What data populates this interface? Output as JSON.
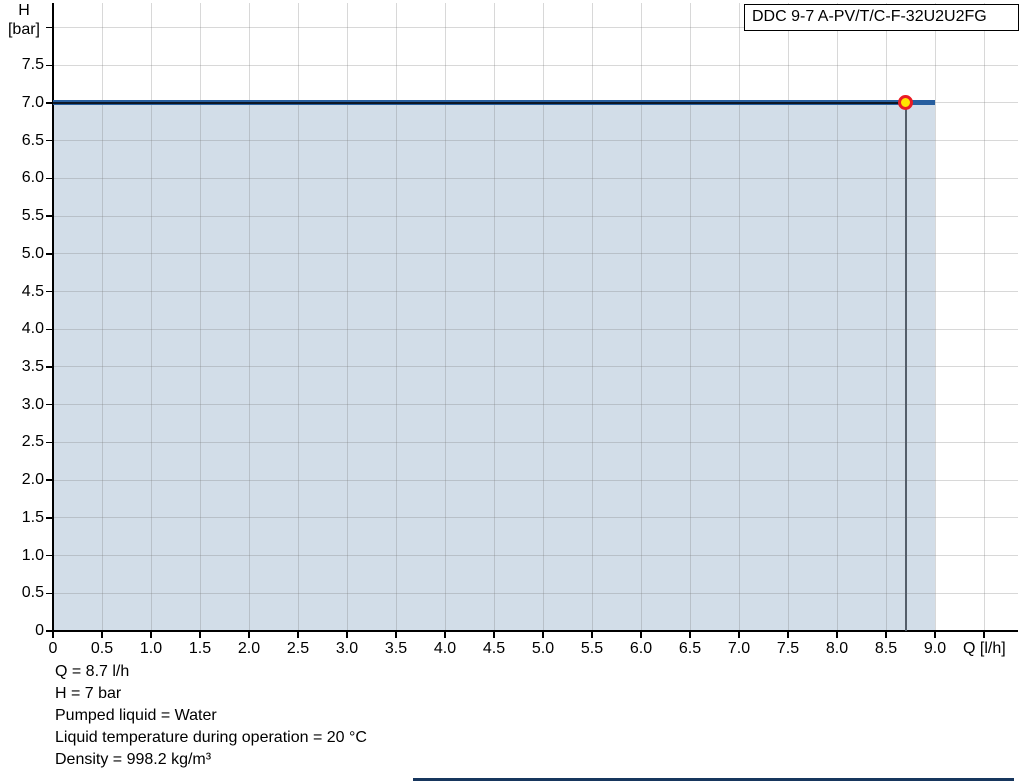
{
  "title_box": {
    "label": "DDC 9-7 A-PV/T/C-F-32U2U2FG"
  },
  "info_lines": [
    "Q = 8.7 l/h",
    "H = 7 bar",
    "Pumped liquid = Water",
    "Liquid temperature during operation = 20 °C",
    "Density = 998.2 kg/m³"
  ],
  "chart_data": {
    "type": "area",
    "title": "DDC 9-7 A-PV/T/C-F-32U2U2FG",
    "xlabel": "Q [l/h]",
    "ylabel": "H [bar]",
    "ylabel_lines": [
      "H",
      "[bar]"
    ],
    "xlim": [
      0,
      9.85
    ],
    "ylim": [
      0,
      8.3
    ],
    "tick_step": 0.5,
    "x_tick_labels": [
      "0",
      "0.5",
      "1.0",
      "1.5",
      "2.0",
      "2.5",
      "3.0",
      "3.5",
      "4.0",
      "4.5",
      "5.0",
      "5.5",
      "6.0",
      "6.5",
      "7.0",
      "7.5",
      "8.0",
      "8.5",
      "9.0"
    ],
    "y_tick_labels": [
      "0",
      "0.5",
      "1.0",
      "1.5",
      "2.0",
      "2.5",
      "3.0",
      "3.5",
      "4.0",
      "4.5",
      "5.0",
      "5.5",
      "6.0",
      "6.5",
      "7.0",
      "7.5"
    ],
    "grid": true,
    "legend": "none",
    "series": [
      {
        "name": "pump-curve",
        "x": [
          0,
          9.0
        ],
        "y": [
          7.0,
          7.0
        ],
        "color": "#275e9f",
        "width": 5
      },
      {
        "name": "duty-highlight",
        "x": [
          0,
          8.7
        ],
        "y": [
          7.0,
          7.0
        ],
        "color": "#0e1826",
        "width": 2
      }
    ],
    "area_fill": {
      "x": [
        0,
        9.0
      ],
      "y_top": 7.0,
      "color": "#d2dde8"
    },
    "duty_point": {
      "q": 8.7,
      "h": 7.0,
      "marker_fill": "#ffe600",
      "marker_stroke": "#ea1c24"
    },
    "duty_drop_line": {
      "x": 8.7,
      "color": "#545e6a"
    }
  },
  "colors": {
    "axis": "#000000",
    "grid": "rgba(125,125,125,0.30)",
    "footer_rule": "#17365d",
    "background": "#ffffff"
  }
}
